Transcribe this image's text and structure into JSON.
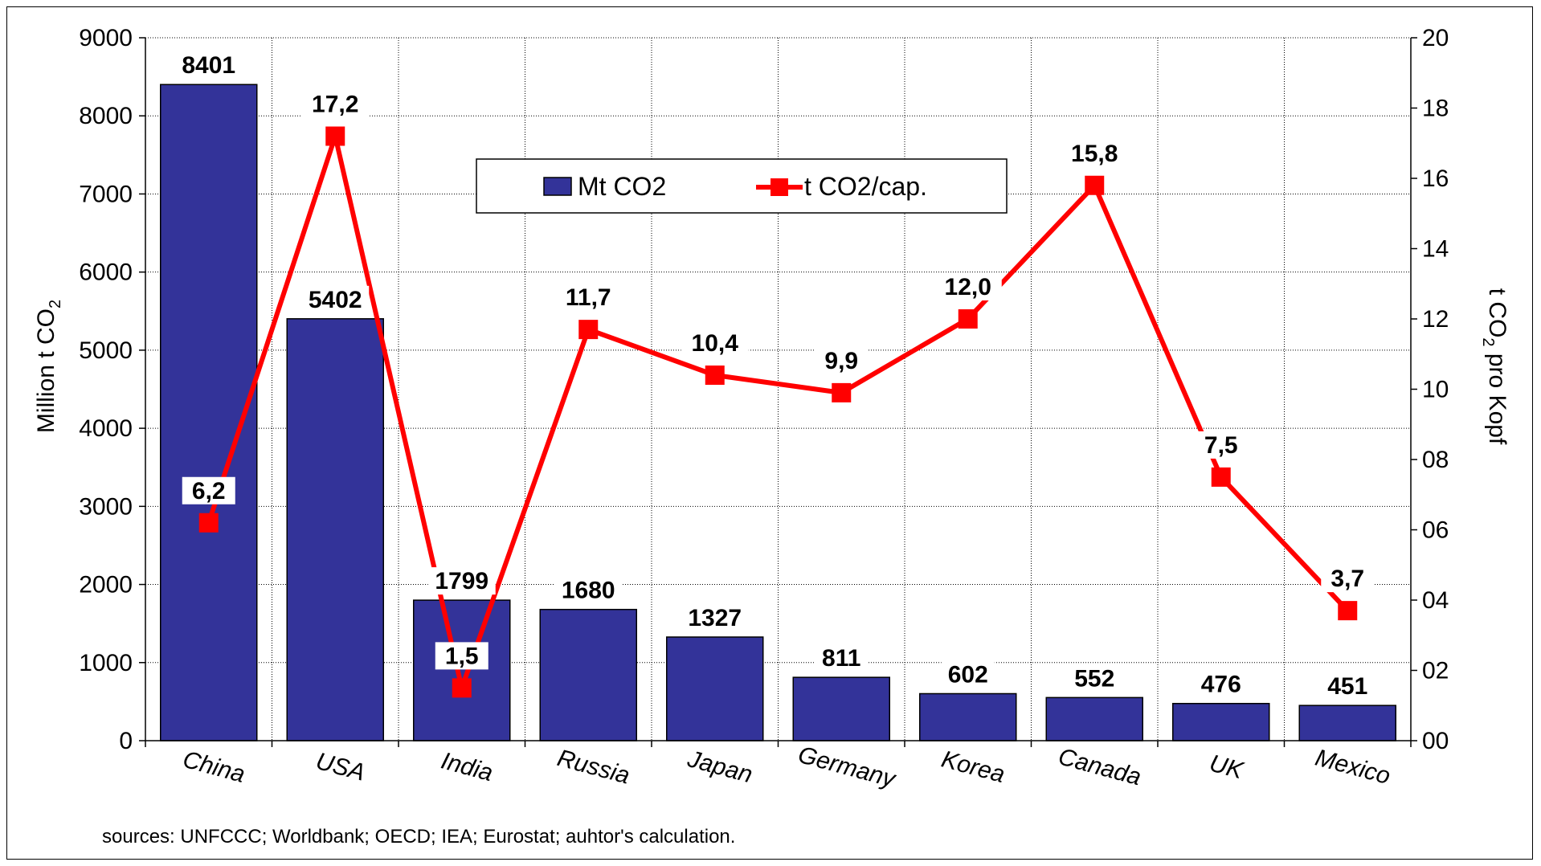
{
  "chart_data": {
    "type": "bar",
    "categories": [
      "China",
      "USA",
      "India",
      "Russia",
      "Japan",
      "Germany",
      "Korea",
      "Canada",
      "UK",
      "Mexico"
    ],
    "series": [
      {
        "name": "Mt CO2",
        "type": "bar",
        "axis": "left",
        "color": "#333399",
        "values": [
          8401,
          5402,
          1799,
          1680,
          1327,
          811,
          602,
          552,
          476,
          451
        ],
        "labels": [
          "8401",
          "5402",
          "1799",
          "1680",
          "1327",
          "811",
          "602",
          "552",
          "476",
          "451"
        ]
      },
      {
        "name": "t CO2/cap.",
        "type": "line",
        "axis": "right",
        "color": "#ff0000",
        "values": [
          6.2,
          17.2,
          1.5,
          11.7,
          10.4,
          9.9,
          12.0,
          15.8,
          7.5,
          3.7
        ],
        "labels": [
          "6,2",
          "17,2",
          "1,5",
          "11,7",
          "10,4",
          "9,9",
          "12,0",
          "15,8",
          "7,5",
          "3,7"
        ]
      }
    ],
    "y_left": {
      "label_main": "Million t CO",
      "label_sub": "2",
      "ylim": [
        0,
        9000
      ],
      "ticks": [
        "0",
        "1000",
        "2000",
        "3000",
        "4000",
        "5000",
        "6000",
        "7000",
        "8000",
        "9000"
      ]
    },
    "y_right": {
      "label_pre": "t CO",
      "label_sub": "2",
      "label_post": " pro Kopf",
      "ylim": [
        0,
        20
      ],
      "ticks": [
        "00",
        "02",
        "04",
        "06",
        "08",
        "10",
        "12",
        "14",
        "16",
        "18",
        "20"
      ]
    },
    "grid": true,
    "grid_style": "dotted",
    "legend_position": "top-center",
    "footnote": "sources: UNFCCC; Worldbank; OECD; IEA; Eurostat; auhtor's calculation."
  }
}
